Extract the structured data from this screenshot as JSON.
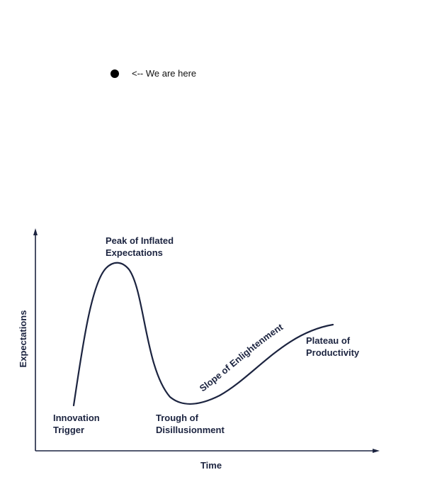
{
  "marker": {
    "label": "<-- We are here"
  },
  "diagram": {
    "y_axis_label": "Expectations",
    "x_axis_label": "Time",
    "stages": {
      "innovation_trigger": [
        "Innovation",
        "Trigger"
      ],
      "peak": [
        "Peak of Inflated",
        "Expectations"
      ],
      "trough": [
        "Trough of",
        "Disillusionment"
      ],
      "slope": "Slope of Enlightenment",
      "plateau": [
        "Plateau of",
        "Productivity"
      ]
    },
    "colors": {
      "ink": "#1c2440",
      "axis": "#1c2440"
    }
  }
}
